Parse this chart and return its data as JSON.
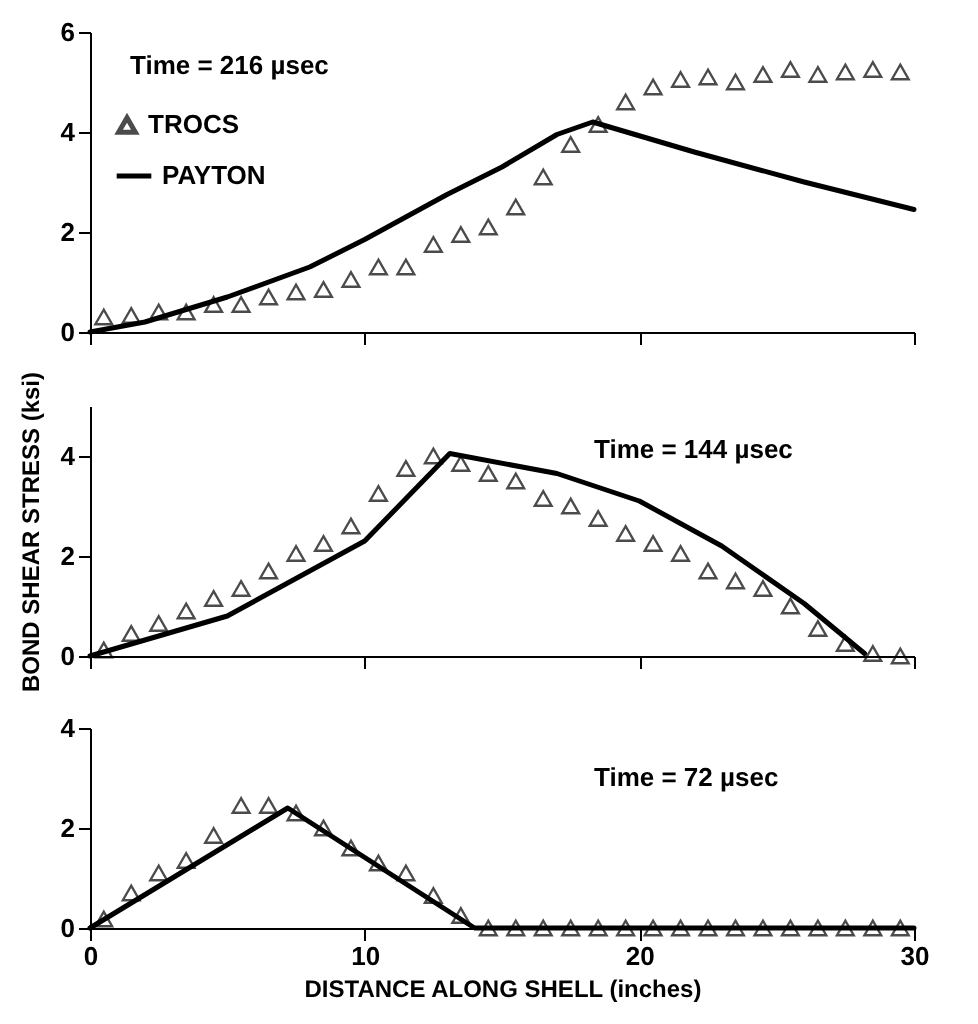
{
  "chart_data": [
    {
      "type": "scatter",
      "annotations": [
        "Time = 216 µsec"
      ],
      "xlim": [
        0,
        30
      ],
      "xticks": [
        0,
        10,
        20,
        30
      ],
      "ylim": [
        0,
        6
      ],
      "yticks": [
        0,
        2,
        4,
        6
      ],
      "tick_labels": "y",
      "grid": false,
      "legend": "top left",
      "series": [
        {
          "name": "TROCS",
          "marker": "triangle",
          "color": "#000000",
          "x": [
            0.5,
            1.5,
            2.5,
            3.5,
            4.5,
            5.5,
            6.5,
            7.5,
            8.5,
            9.5,
            10.5,
            11.5,
            12.5,
            13.5,
            14.5,
            15.5,
            16.5,
            17.5,
            18.5,
            19.5,
            20.5,
            21.5,
            22.5,
            23.5,
            24.5,
            25.5,
            26.5,
            27.5,
            28.5,
            29.5
          ],
          "values": [
            0.3,
            0.33,
            0.4,
            0.4,
            0.55,
            0.55,
            0.7,
            0.8,
            0.85,
            1.05,
            1.3,
            1.3,
            1.75,
            1.95,
            2.1,
            2.5,
            3.1,
            3.75,
            4.15,
            4.6,
            4.9,
            5.05,
            5.1,
            5.0,
            5.15,
            5.25,
            5.15,
            5.2,
            5.25,
            5.2
          ]
        },
        {
          "name": "PAYTON",
          "type": "line",
          "marker": "none",
          "line_style": "solid",
          "color": "#000000",
          "x": [
            0,
            2,
            5,
            8,
            10,
            13,
            15,
            17,
            18.3,
            22,
            26,
            30
          ],
          "values": [
            0,
            0.2,
            0.7,
            1.3,
            1.85,
            2.75,
            3.3,
            3.95,
            4.2,
            3.6,
            3.0,
            2.45
          ]
        }
      ]
    },
    {
      "type": "scatter",
      "ylabel": "BOND SHEAR STRESS (ksi)",
      "annotations": [
        "Time = 144 µsec"
      ],
      "xlim": [
        0,
        30
      ],
      "xticks": [
        0,
        10,
        20,
        30
      ],
      "ylim": [
        0,
        5
      ],
      "yticks": [
        0,
        2,
        4
      ],
      "tick_labels": "y",
      "grid": false,
      "series": [
        {
          "marker": "triangle",
          "color": "#000000",
          "x": [
            0.5,
            1.5,
            2.5,
            3.5,
            4.5,
            5.5,
            6.5,
            7.5,
            8.5,
            9.5,
            10.5,
            11.5,
            12.5,
            13.5,
            14.5,
            15.5,
            16.5,
            17.5,
            18.5,
            19.5,
            20.5,
            21.5,
            22.5,
            23.5,
            24.5,
            25.5,
            26.5,
            27.5,
            28.5,
            29.5
          ],
          "values": [
            0.12,
            0.45,
            0.65,
            0.9,
            1.15,
            1.35,
            1.7,
            2.05,
            2.25,
            2.6,
            3.25,
            3.75,
            4.0,
            3.85,
            3.65,
            3.5,
            3.15,
            3.0,
            2.75,
            2.45,
            2.25,
            2.05,
            1.7,
            1.5,
            1.35,
            1.0,
            0.55,
            0.25,
            0.05,
            0
          ]
        },
        {
          "type": "line",
          "marker": "none",
          "line_style": "solid",
          "color": "#000000",
          "x": [
            0,
            5,
            10,
            13.1,
            17,
            20,
            23,
            26,
            28.2
          ],
          "values": [
            0,
            0.8,
            2.3,
            4.05,
            3.65,
            3.1,
            2.2,
            1.05,
            0.05
          ]
        }
      ]
    },
    {
      "type": "scatter",
      "xlabel": "DISTANCE ALONG SHELL (inches)",
      "annotations": [
        "Time = 72 µsec"
      ],
      "xlim": [
        0,
        30
      ],
      "xticks": [
        0,
        10,
        20,
        30
      ],
      "ylim": [
        0,
        4
      ],
      "yticks": [
        0,
        2,
        4
      ],
      "grid": false,
      "series": [
        {
          "marker": "triangle",
          "color": "#000000",
          "x": [
            0.5,
            1.5,
            2.5,
            3.5,
            4.5,
            5.5,
            6.5,
            7.5,
            8.5,
            9.5,
            10.5,
            11.5,
            12.5,
            13.5,
            14.5,
            15.5,
            16.5,
            17.5,
            18.5,
            19.5,
            20.5,
            21.5,
            22.5,
            23.5,
            24.5,
            25.5,
            26.5,
            27.5,
            28.5,
            29.5
          ],
          "values": [
            0.18,
            0.7,
            1.1,
            1.35,
            1.85,
            2.45,
            2.45,
            2.3,
            2.0,
            1.6,
            1.3,
            1.1,
            0.65,
            0.25,
            0,
            0,
            0,
            0,
            0,
            0,
            0,
            0,
            0,
            0,
            0,
            0,
            0,
            0,
            0,
            0
          ]
        },
        {
          "type": "line",
          "marker": "none",
          "line_style": "solid",
          "color": "#000000",
          "x": [
            0,
            7.2,
            14,
            30
          ],
          "values": [
            0,
            2.4,
            0,
            0
          ]
        }
      ]
    }
  ]
}
